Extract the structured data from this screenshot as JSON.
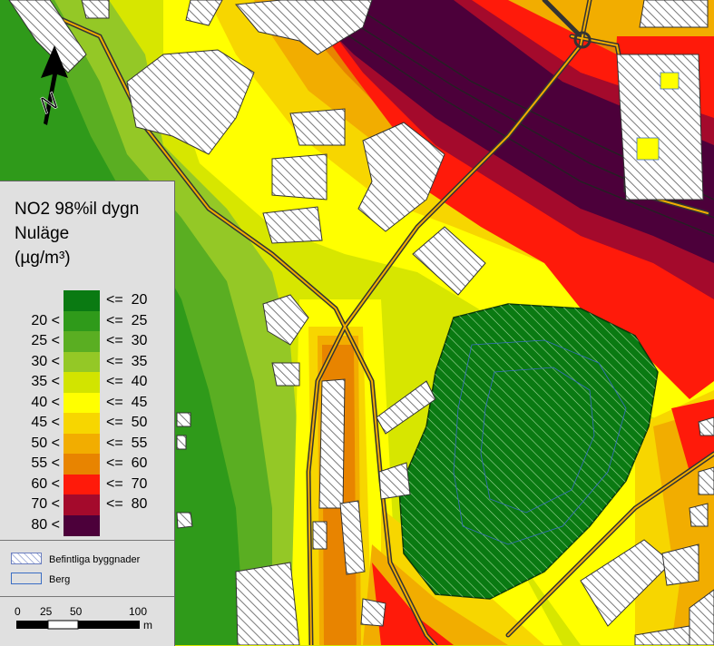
{
  "legend": {
    "title_line1": "NO2 98%il dygn",
    "title_line2": "Nuläge",
    "title_line3": "(µg/m³)",
    "classes": [
      {
        "left": "",
        "right": "<=  20",
        "color": "#0a7a12"
      },
      {
        "left": "20 <",
        "right": "<=  25",
        "color": "#2f9a1a"
      },
      {
        "left": "25 <",
        "right": "<=  30",
        "color": "#5aae22"
      },
      {
        "left": "30 <",
        "right": "<=  35",
        "color": "#94c826"
      },
      {
        "left": "35 <",
        "right": "<=  40",
        "color": "#d2e400"
      },
      {
        "left": "40 <",
        "right": "<=  45",
        "color": "#ffff00"
      },
      {
        "left": "45 <",
        "right": "<=  50",
        "color": "#f7d600"
      },
      {
        "left": "50 <",
        "right": "<=  55",
        "color": "#f2ad00"
      },
      {
        "left": "55 <",
        "right": "<=  60",
        "color": "#e88400"
      },
      {
        "left": "60 <",
        "right": "<=  70",
        "color": "#ff1a0a"
      },
      {
        "left": "70 <",
        "right": "<=  80",
        "color": "#a40a2c"
      },
      {
        "left": "80 <",
        "right": "",
        "color": "#4c003a"
      }
    ],
    "buildings_label": "Befintliga byggnader",
    "rock_label": "Berg"
  },
  "scale": {
    "ticks": [
      "0",
      "25",
      "50",
      "100"
    ],
    "unit": "m"
  },
  "north_arrow": {
    "label": "N"
  }
}
